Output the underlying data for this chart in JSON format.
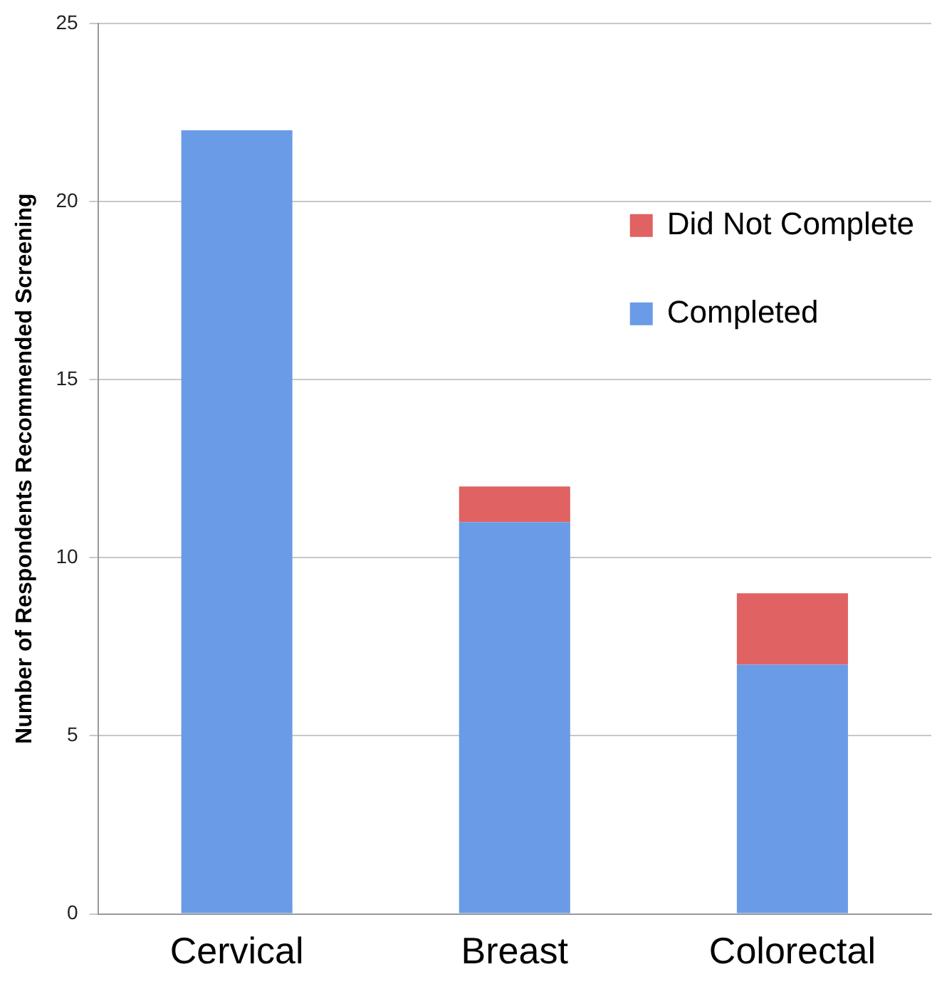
{
  "chart_data": {
    "type": "bar",
    "ylabel": "Number of Respondents Recommended Screening",
    "categories": [
      "Cervical",
      "Breast",
      "Colorectal"
    ],
    "series": [
      {
        "name": "Completed",
        "color": "#6a9be6",
        "values": [
          22,
          11,
          7
        ]
      },
      {
        "name": "Did Not Complete",
        "color": "#e06262",
        "values": [
          0,
          1,
          2
        ]
      }
    ],
    "stacked": true,
    "ylim": [
      0,
      25
    ],
    "yticks": [
      0,
      5,
      10,
      15,
      20,
      25
    ],
    "grid": "y",
    "legend": "top right"
  }
}
